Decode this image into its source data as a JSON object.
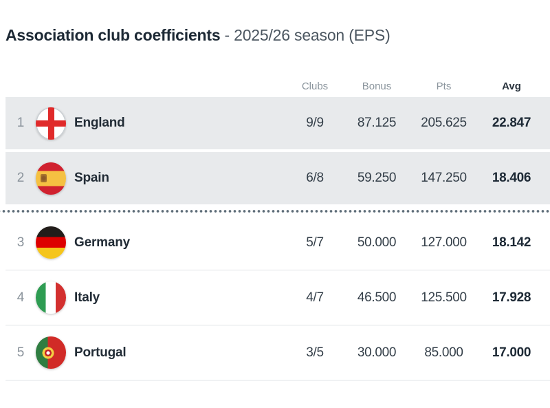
{
  "page": {
    "title_main": "Association club coefficients",
    "title_sub": "- 2025/26 season (EPS)"
  },
  "table": {
    "headers": {
      "clubs": "Clubs",
      "bonus": "Bonus",
      "pts": "Pts",
      "avg": "Avg"
    },
    "rows": [
      {
        "rank": "1",
        "country": "England",
        "flag": "england-flag",
        "clubs": "9/9",
        "bonus": "87.125",
        "pts": "205.625",
        "avg": "22.847",
        "highlighted": true
      },
      {
        "rank": "2",
        "country": "Spain",
        "flag": "spain-flag",
        "clubs": "6/8",
        "bonus": "59.250",
        "pts": "147.250",
        "avg": "18.406",
        "highlighted": true,
        "separator_after": "dotted-cutoff"
      },
      {
        "rank": "3",
        "country": "Germany",
        "flag": "germany-flag",
        "clubs": "5/7",
        "bonus": "50.000",
        "pts": "127.000",
        "avg": "18.142",
        "highlighted": false
      },
      {
        "rank": "4",
        "country": "Italy",
        "flag": "italy-flag",
        "clubs": "4/7",
        "bonus": "46.500",
        "pts": "125.500",
        "avg": "17.928",
        "highlighted": false
      },
      {
        "rank": "5",
        "country": "Portugal",
        "flag": "portugal-flag",
        "clubs": "3/5",
        "bonus": "30.000",
        "pts": "85.000",
        "avg": "17.000",
        "highlighted": false
      }
    ]
  },
  "colors": {
    "title_dark": "#1d2935",
    "title_light": "#4b5660",
    "header_text": "#8b959d",
    "highlight_row_bg": "#e8eaec",
    "row_border": "#dfe3e6",
    "dotted_separator": "#5d6c78",
    "value_text": "#333e48",
    "avg_text": "#1d2935",
    "rank_text": "#8a939b"
  }
}
